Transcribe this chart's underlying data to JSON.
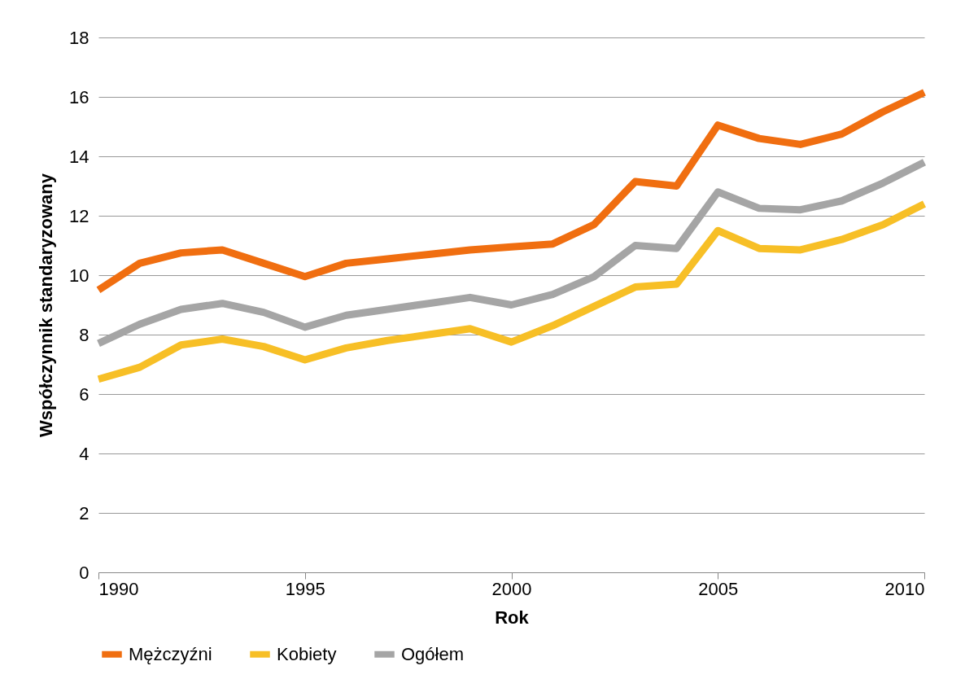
{
  "chart_data": {
    "type": "line",
    "xlabel": "Rok",
    "ylabel": "Współczynnik standaryzowany",
    "x": [
      1990,
      1991,
      1992,
      1993,
      1994,
      1995,
      1996,
      1997,
      1998,
      1999,
      2000,
      2001,
      2002,
      2003,
      2004,
      2005,
      2006,
      2007,
      2008,
      2009,
      2010
    ],
    "xlim": [
      1990,
      2010
    ],
    "xticks": [
      1990,
      1995,
      2000,
      2005,
      2010
    ],
    "ylim": [
      0,
      18
    ],
    "yticks": [
      0,
      2,
      4,
      6,
      8,
      10,
      12,
      14,
      16,
      18
    ],
    "grid": "y",
    "legend": "bottom",
    "marker": "none",
    "line_style": "solid",
    "series": [
      {
        "name": "Mężczyźni",
        "color": "#f06e10",
        "values": [
          9.5,
          10.4,
          10.75,
          10.85,
          10.4,
          9.95,
          10.4,
          10.55,
          10.7,
          10.85,
          10.95,
          11.05,
          11.7,
          13.15,
          13.0,
          15.05,
          14.6,
          14.4,
          14.75,
          15.5,
          16.15
        ]
      },
      {
        "name": "Kobiety",
        "color": "#f7bf26",
        "values": [
          6.5,
          6.9,
          7.65,
          7.85,
          7.6,
          7.15,
          7.55,
          7.8,
          8.0,
          8.2,
          7.75,
          8.3,
          8.95,
          9.6,
          9.7,
          11.5,
          10.9,
          10.85,
          11.2,
          11.7,
          12.4
        ]
      },
      {
        "name": "Ogółem",
        "color": "#a5a5a5",
        "values": [
          7.7,
          8.35,
          8.85,
          9.05,
          8.75,
          8.25,
          8.65,
          8.85,
          9.05,
          9.25,
          9.0,
          9.35,
          9.95,
          11.0,
          10.9,
          12.8,
          12.25,
          12.2,
          12.5,
          13.1,
          13.8
        ]
      }
    ]
  }
}
